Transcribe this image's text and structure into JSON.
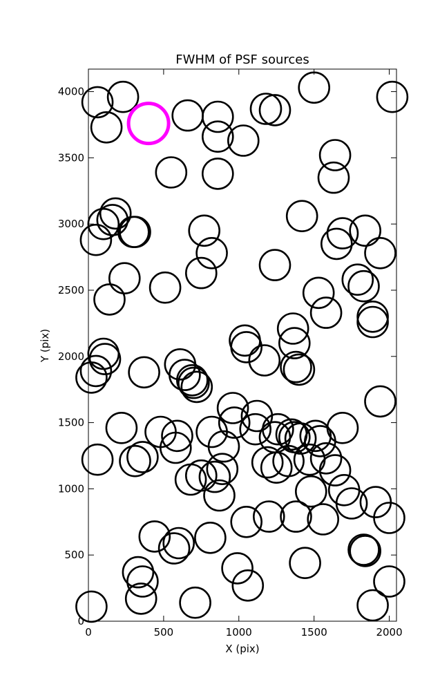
{
  "chart_data": {
    "type": "scatter",
    "title": "FWHM of PSF sources",
    "xlabel": "X (pix)",
    "ylabel": "Y (pix)",
    "xlim": [
      0,
      2048
    ],
    "ylim": [
      0,
      4170
    ],
    "xticks": [
      "0",
      "500",
      "1000",
      "1500",
      "2000"
    ],
    "xtick_values": [
      0,
      500,
      1000,
      1500,
      2000
    ],
    "yticks": [
      "0",
      "500",
      "1000",
      "1500",
      "2000",
      "2500",
      "3000",
      "3500",
      "4000"
    ],
    "ytick_values": [
      0,
      500,
      1000,
      1500,
      2000,
      2500,
      3000,
      3500,
      4000
    ],
    "grid": false,
    "marker": "open circle",
    "series": [
      {
        "color": "#000000",
        "points": [
          {
            "x": 60,
            "y": 3920
          },
          {
            "x": 230,
            "y": 3960
          },
          {
            "x": 120,
            "y": 3730
          },
          {
            "x": 660,
            "y": 3820
          },
          {
            "x": 860,
            "y": 3810
          },
          {
            "x": 860,
            "y": 3660
          },
          {
            "x": 1030,
            "y": 3630
          },
          {
            "x": 1180,
            "y": 3870
          },
          {
            "x": 1240,
            "y": 3860
          },
          {
            "x": 1500,
            "y": 4030
          },
          {
            "x": 2020,
            "y": 3960
          },
          {
            "x": 550,
            "y": 3390
          },
          {
            "x": 860,
            "y": 3380
          },
          {
            "x": 1640,
            "y": 3520
          },
          {
            "x": 1630,
            "y": 3350
          },
          {
            "x": 180,
            "y": 3080
          },
          {
            "x": 160,
            "y": 3030
          },
          {
            "x": 100,
            "y": 3000
          },
          {
            "x": 300,
            "y": 2940
          },
          {
            "x": 310,
            "y": 2940
          },
          {
            "x": 50,
            "y": 2880
          },
          {
            "x": 770,
            "y": 2950
          },
          {
            "x": 820,
            "y": 2780
          },
          {
            "x": 1420,
            "y": 3060
          },
          {
            "x": 1690,
            "y": 2930
          },
          {
            "x": 1650,
            "y": 2850
          },
          {
            "x": 1840,
            "y": 2950
          },
          {
            "x": 1940,
            "y": 2780
          },
          {
            "x": 1240,
            "y": 2690
          },
          {
            "x": 750,
            "y": 2630
          },
          {
            "x": 240,
            "y": 2590
          },
          {
            "x": 510,
            "y": 2520
          },
          {
            "x": 140,
            "y": 2430
          },
          {
            "x": 1790,
            "y": 2580
          },
          {
            "x": 1830,
            "y": 2530
          },
          {
            "x": 1530,
            "y": 2480
          },
          {
            "x": 1580,
            "y": 2330
          },
          {
            "x": 1890,
            "y": 2300
          },
          {
            "x": 1890,
            "y": 2260
          },
          {
            "x": 1360,
            "y": 2210
          },
          {
            "x": 1370,
            "y": 2100
          },
          {
            "x": 1040,
            "y": 2120
          },
          {
            "x": 1050,
            "y": 2070
          },
          {
            "x": 1170,
            "y": 1970
          },
          {
            "x": 100,
            "y": 2020
          },
          {
            "x": 110,
            "y": 1980
          },
          {
            "x": 50,
            "y": 1890
          },
          {
            "x": 20,
            "y": 1840
          },
          {
            "x": 370,
            "y": 1880
          },
          {
            "x": 610,
            "y": 1940
          },
          {
            "x": 640,
            "y": 1860
          },
          {
            "x": 690,
            "y": 1820
          },
          {
            "x": 700,
            "y": 1800
          },
          {
            "x": 720,
            "y": 1770
          },
          {
            "x": 1380,
            "y": 1920
          },
          {
            "x": 1400,
            "y": 1900
          },
          {
            "x": 960,
            "y": 1610
          },
          {
            "x": 1940,
            "y": 1660
          },
          {
            "x": 1120,
            "y": 1550
          },
          {
            "x": 970,
            "y": 1500
          },
          {
            "x": 220,
            "y": 1460
          },
          {
            "x": 480,
            "y": 1430
          },
          {
            "x": 820,
            "y": 1430
          },
          {
            "x": 590,
            "y": 1400
          },
          {
            "x": 1110,
            "y": 1450
          },
          {
            "x": 1260,
            "y": 1450
          },
          {
            "x": 1350,
            "y": 1410
          },
          {
            "x": 1370,
            "y": 1390
          },
          {
            "x": 1410,
            "y": 1380
          },
          {
            "x": 1510,
            "y": 1400
          },
          {
            "x": 1690,
            "y": 1460
          },
          {
            "x": 580,
            "y": 1310
          },
          {
            "x": 900,
            "y": 1320
          },
          {
            "x": 1240,
            "y": 1390
          },
          {
            "x": 1540,
            "y": 1360
          },
          {
            "x": 60,
            "y": 1220
          },
          {
            "x": 310,
            "y": 1210
          },
          {
            "x": 360,
            "y": 1240
          },
          {
            "x": 1190,
            "y": 1200
          },
          {
            "x": 1330,
            "y": 1210
          },
          {
            "x": 1470,
            "y": 1220
          },
          {
            "x": 1580,
            "y": 1230
          },
          {
            "x": 890,
            "y": 1150
          },
          {
            "x": 1250,
            "y": 1160
          },
          {
            "x": 1640,
            "y": 1140
          },
          {
            "x": 680,
            "y": 1070
          },
          {
            "x": 750,
            "y": 1100
          },
          {
            "x": 840,
            "y": 1090
          },
          {
            "x": 1480,
            "y": 980
          },
          {
            "x": 1700,
            "y": 990
          },
          {
            "x": 870,
            "y": 950
          },
          {
            "x": 1750,
            "y": 890
          },
          {
            "x": 1910,
            "y": 900
          },
          {
            "x": 1380,
            "y": 790
          },
          {
            "x": 1560,
            "y": 770
          },
          {
            "x": 1200,
            "y": 790
          },
          {
            "x": 1050,
            "y": 750
          },
          {
            "x": 2000,
            "y": 780
          },
          {
            "x": 440,
            "y": 640
          },
          {
            "x": 600,
            "y": 590
          },
          {
            "x": 570,
            "y": 550
          },
          {
            "x": 810,
            "y": 630
          },
          {
            "x": 1830,
            "y": 540
          },
          {
            "x": 1840,
            "y": 530
          },
          {
            "x": 330,
            "y": 370
          },
          {
            "x": 360,
            "y": 300
          },
          {
            "x": 990,
            "y": 400
          },
          {
            "x": 1060,
            "y": 270
          },
          {
            "x": 1440,
            "y": 440
          },
          {
            "x": 2000,
            "y": 300
          },
          {
            "x": 350,
            "y": 170
          },
          {
            "x": 710,
            "y": 140
          },
          {
            "x": 20,
            "y": 110
          },
          {
            "x": 1890,
            "y": 120
          }
        ]
      },
      {
        "color": "#ff00ff",
        "points": [
          {
            "x": 400,
            "y": 3760
          }
        ]
      }
    ]
  }
}
